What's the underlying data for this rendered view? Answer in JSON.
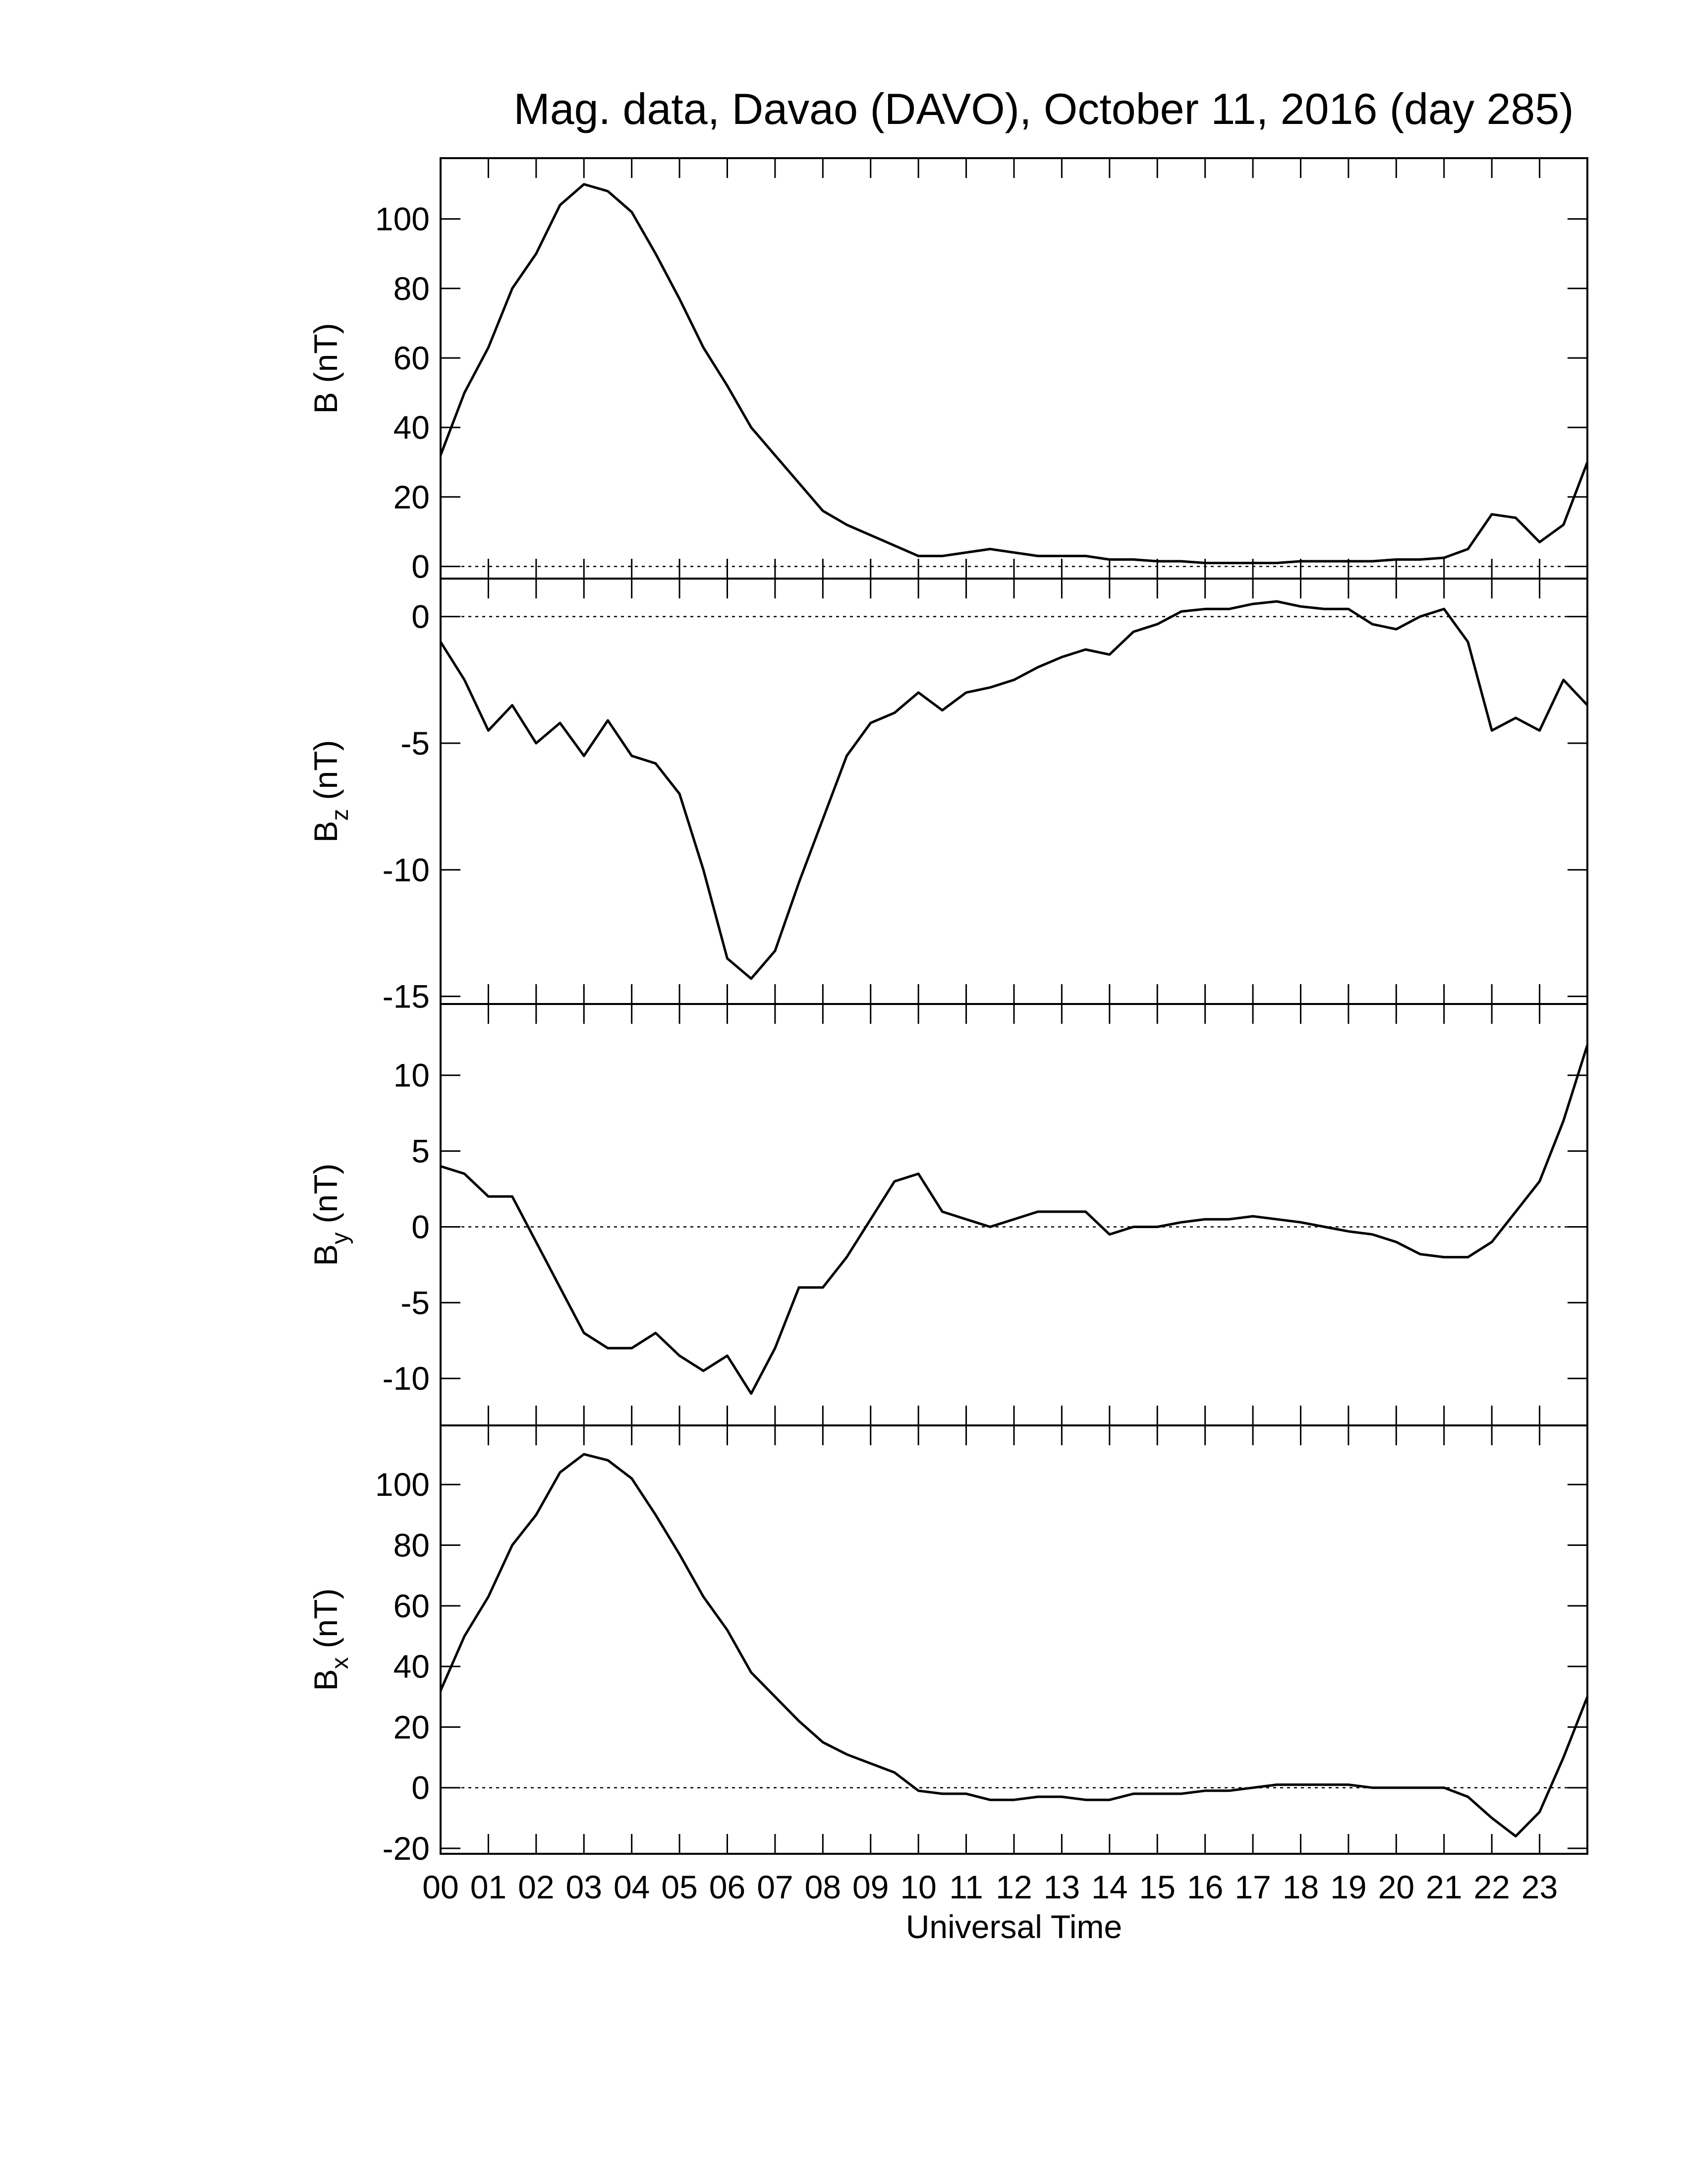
{
  "chart_data": [
    {
      "type": "line",
      "title": "Mag. data, Davao (DAVO), October 11, 2016 (day 285)",
      "ylabel": "B (nT)",
      "x": [
        0,
        0.5,
        1,
        1.5,
        2,
        2.5,
        3,
        3.5,
        4,
        4.5,
        5,
        5.5,
        6,
        6.5,
        7,
        7.5,
        8,
        8.5,
        9,
        9.5,
        10,
        10.5,
        11,
        11.5,
        12,
        12.5,
        13,
        13.5,
        14,
        14.5,
        15,
        15.5,
        16,
        16.5,
        17,
        17.5,
        18,
        18.5,
        19,
        19.5,
        20,
        20.5,
        21,
        21.5,
        22,
        22.5,
        23,
        23.5,
        24
      ],
      "series": [
        {
          "color": "#000000",
          "values": [
            32,
            50,
            63,
            80,
            90,
            104,
            110,
            108,
            102,
            90,
            77,
            63,
            52,
            40,
            32,
            24,
            16,
            12,
            9,
            6,
            3,
            3,
            4,
            5,
            4,
            3,
            3,
            3,
            2,
            2,
            1.5,
            1.5,
            1,
            1,
            1,
            1,
            1.5,
            1.5,
            1.5,
            1.5,
            2,
            2,
            2.5,
            5,
            15,
            14,
            7,
            12,
            30
          ]
        }
      ],
      "xlim": [
        0,
        24
      ],
      "xticks": [
        0,
        1,
        2,
        3,
        4,
        5,
        6,
        7,
        8,
        9,
        10,
        11,
        12,
        13,
        14,
        15,
        16,
        17,
        18,
        19,
        20,
        21,
        22,
        23
      ],
      "ylim": [
        -3.5,
        117.5
      ],
      "yticks": [
        0,
        20,
        40,
        60,
        80,
        100
      ],
      "zero_line": true
    },
    {
      "type": "line",
      "ylabel": "B",
      "ylabel_sub": "z",
      "ylabel_unit": "(nT)",
      "x": [
        0,
        0.5,
        1,
        1.5,
        2,
        2.5,
        3,
        3.5,
        4,
        4.5,
        5,
        5.5,
        6,
        6.5,
        7,
        7.5,
        8,
        8.5,
        9,
        9.5,
        10,
        10.5,
        11,
        11.5,
        12,
        12.5,
        13,
        13.5,
        14,
        14.5,
        15,
        15.5,
        16,
        16.5,
        17,
        17.5,
        18,
        18.5,
        19,
        19.5,
        20,
        20.5,
        21,
        21.5,
        22,
        22.5,
        23,
        23.5,
        24
      ],
      "series": [
        {
          "color": "#000000",
          "values": [
            -1,
            -2.5,
            -4.5,
            -3.5,
            -5,
            -4.2,
            -5.5,
            -4.1,
            -5.5,
            -5.8,
            -7,
            -10,
            -13.5,
            -14.3,
            -13.2,
            -10.5,
            -8,
            -5.5,
            -4.2,
            -3.8,
            -3,
            -3.7,
            -3,
            -2.8,
            -2.5,
            -2,
            -1.6,
            -1.3,
            -1.5,
            -0.6,
            -0.3,
            0.2,
            0.3,
            0.3,
            0.5,
            0.6,
            0.4,
            0.3,
            0.3,
            -0.3,
            -0.5,
            0,
            0.3,
            -1,
            -4.5,
            -4,
            -4.5,
            -2.5,
            -3.5
          ]
        }
      ],
      "xlim": [
        0,
        24
      ],
      "xticks": [
        0,
        1,
        2,
        3,
        4,
        5,
        6,
        7,
        8,
        9,
        10,
        11,
        12,
        13,
        14,
        15,
        16,
        17,
        18,
        19,
        20,
        21,
        22,
        23
      ],
      "ylim": [
        -15.3,
        1.5
      ],
      "yticks": [
        -15,
        -10,
        -5,
        0
      ],
      "zero_line": true
    },
    {
      "type": "line",
      "ylabel": "B",
      "ylabel_sub": "y",
      "ylabel_unit": "(nT)",
      "x": [
        0,
        0.5,
        1,
        1.5,
        2,
        2.5,
        3,
        3.5,
        4,
        4.5,
        5,
        5.5,
        6,
        6.5,
        7,
        7.5,
        8,
        8.5,
        9,
        9.5,
        10,
        10.5,
        11,
        11.5,
        12,
        12.5,
        13,
        13.5,
        14,
        14.5,
        15,
        15.5,
        16,
        16.5,
        17,
        17.5,
        18,
        18.5,
        19,
        19.5,
        20,
        20.5,
        21,
        21.5,
        22,
        22.5,
        23,
        23.5,
        24
      ],
      "series": [
        {
          "color": "#000000",
          "values": [
            4,
            3.5,
            2,
            2,
            -1,
            -4,
            -7,
            -8,
            -8,
            -7,
            -8.5,
            -9.5,
            -8.5,
            -11,
            -8,
            -4,
            -4,
            -2,
            0.5,
            3,
            3.5,
            1,
            0.5,
            0,
            0.5,
            1,
            1,
            1,
            -0.5,
            0,
            0,
            0.3,
            0.5,
            0.5,
            0.7,
            0.5,
            0.3,
            0,
            -0.3,
            -0.5,
            -1,
            -1.8,
            -2,
            -2,
            -1,
            1,
            3,
            7,
            12
          ]
        }
      ],
      "xlim": [
        0,
        24
      ],
      "xticks": [
        0,
        1,
        2,
        3,
        4,
        5,
        6,
        7,
        8,
        9,
        10,
        11,
        12,
        13,
        14,
        15,
        16,
        17,
        18,
        19,
        20,
        21,
        22,
        23
      ],
      "ylim": [
        -13.1,
        14.7
      ],
      "yticks": [
        -10,
        -5,
        0,
        5,
        10
      ],
      "zero_line": true
    },
    {
      "type": "line",
      "ylabel": "B",
      "ylabel_sub": "x",
      "ylabel_unit": "(nT)",
      "xlabel": "Universal Time",
      "x": [
        0,
        0.5,
        1,
        1.5,
        2,
        2.5,
        3,
        3.5,
        4,
        4.5,
        5,
        5.5,
        6,
        6.5,
        7,
        7.5,
        8,
        8.5,
        9,
        9.5,
        10,
        10.5,
        11,
        11.5,
        12,
        12.5,
        13,
        13.5,
        14,
        14.5,
        15,
        15.5,
        16,
        16.5,
        17,
        17.5,
        18,
        18.5,
        19,
        19.5,
        20,
        20.5,
        21,
        21.5,
        22,
        22.5,
        23,
        23.5,
        24
      ],
      "series": [
        {
          "color": "#000000",
          "values": [
            32,
            50,
            63,
            80,
            90,
            104,
            110,
            108,
            102,
            90,
            77,
            63,
            52,
            38,
            30,
            22,
            15,
            11,
            8,
            5,
            -1,
            -2,
            -2,
            -4,
            -4,
            -3,
            -3,
            -4,
            -4,
            -2,
            -2,
            -2,
            -1,
            -1,
            0,
            1,
            1,
            1,
            1,
            0,
            0,
            0,
            0,
            -3,
            -10,
            -16,
            -8,
            10,
            30
          ]
        }
      ],
      "xlim": [
        0,
        24
      ],
      "xticks": [
        {
          "value": 0,
          "label": "00"
        },
        {
          "value": 1,
          "label": "01"
        },
        {
          "value": 2,
          "label": "02"
        },
        {
          "value": 3,
          "label": "03"
        },
        {
          "value": 4,
          "label": "04"
        },
        {
          "value": 5,
          "label": "05"
        },
        {
          "value": 6,
          "label": "06"
        },
        {
          "value": 7,
          "label": "07"
        },
        {
          "value": 8,
          "label": "08"
        },
        {
          "value": 9,
          "label": "09"
        },
        {
          "value": 10,
          "label": "10"
        },
        {
          "value": 11,
          "label": "11"
        },
        {
          "value": 12,
          "label": "12"
        },
        {
          "value": 13,
          "label": "13"
        },
        {
          "value": 14,
          "label": "14"
        },
        {
          "value": 15,
          "label": "15"
        },
        {
          "value": 16,
          "label": "16"
        },
        {
          "value": 17,
          "label": "17"
        },
        {
          "value": 18,
          "label": "18"
        },
        {
          "value": 19,
          "label": "19"
        },
        {
          "value": 20,
          "label": "20"
        },
        {
          "value": 21,
          "label": "21"
        },
        {
          "value": 22,
          "label": "22"
        },
        {
          "value": 23,
          "label": "23"
        }
      ],
      "ylim": [
        -21.8,
        119.5
      ],
      "yticks": [
        -20,
        0,
        20,
        40,
        60,
        80,
        100
      ],
      "zero_line": true
    }
  ]
}
